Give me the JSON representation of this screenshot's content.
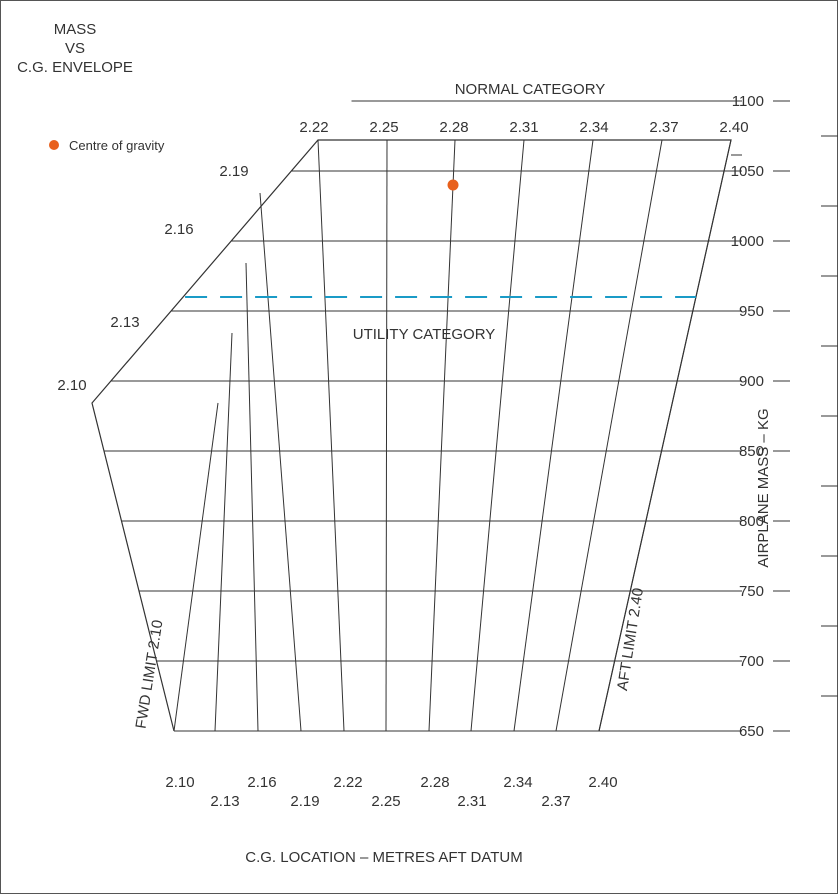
{
  "chart_data": {
    "type": "scatter",
    "title_lines": [
      "MASS",
      "VS",
      "C.G. ENVELOPE"
    ],
    "top_label": "NORMAL CATEGORY",
    "band_label": "UTILITY CATEGORY",
    "xlabel": "C.G. LOCATION – METRES AFT DATUM",
    "ylabel": "AIRPLANE MASS – KG",
    "fwd_limit_label": "FWD LIMIT 2.10",
    "aft_limit_label": "AFT LIMIT 2.40",
    "legend": {
      "label": "Centre of gravity",
      "color": "#e8601c",
      "placement": "top-left"
    },
    "cg_lines": [
      "2.10",
      "2.13",
      "2.16",
      "2.19",
      "2.22",
      "2.25",
      "2.28",
      "2.31",
      "2.34",
      "2.37",
      "2.40"
    ],
    "top_ticks": [
      "2.22",
      "2.25",
      "2.28",
      "2.31",
      "2.34",
      "2.37",
      "2.40"
    ],
    "left_edge_ticks": [
      "2.19",
      "2.16",
      "2.13",
      "2.10"
    ],
    "bottom_ticks": [
      "2.10",
      "2.13",
      "2.16",
      "2.19",
      "2.22",
      "2.25",
      "2.28",
      "2.31",
      "2.34",
      "2.37",
      "2.40"
    ],
    "y_ticks": [
      "650",
      "700",
      "750",
      "800",
      "850",
      "900",
      "950",
      "1000",
      "1050",
      "1100"
    ],
    "ylim": [
      650,
      1100
    ],
    "utility_limit_mass": 960,
    "utility_line_color": "#1a9bc7",
    "envelope": [
      {
        "cg": 2.1,
        "mass": 650
      },
      {
        "cg": 2.1,
        "mass": 930
      },
      {
        "cg": 2.22,
        "mass": 1100
      },
      {
        "cg": 2.4,
        "mass": 1100
      },
      {
        "cg": 2.4,
        "mass": 650
      }
    ],
    "points": [
      {
        "cg": 2.28,
        "mass": 1040
      }
    ]
  }
}
